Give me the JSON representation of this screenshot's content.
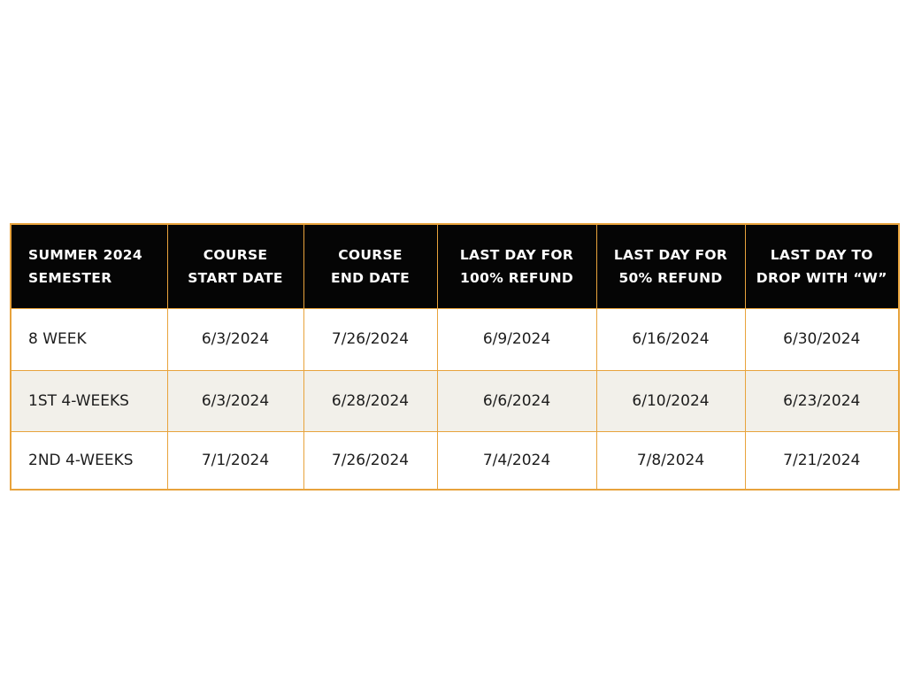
{
  "theme": {
    "border_color": "#E8A33C",
    "header_bg": "#050505",
    "header_text_color": "#FFFFFF",
    "row_alt_bg": "#F2F0EA",
    "body_text_color": "#1C1C1C",
    "page_bg": "#FFFFFF"
  },
  "table": {
    "columns": [
      {
        "line1": "SUMMER 2024",
        "line2": "SEMESTER"
      },
      {
        "line1": "COURSE",
        "line2": "START DATE"
      },
      {
        "line1": "COURSE",
        "line2": "END DATE"
      },
      {
        "line1": "LAST DAY FOR",
        "line2": "100% REFUND"
      },
      {
        "line1": "LAST DAY FOR",
        "line2": "50% REFUND"
      },
      {
        "line1": "LAST DAY TO",
        "line2": "DROP WITH “W”"
      }
    ],
    "rows": [
      {
        "semester": "8 WEEK",
        "start": "6/3/2024",
        "end": "7/26/2024",
        "refund100": "6/9/2024",
        "refund50": "6/16/2024",
        "drop_w": "6/30/2024"
      },
      {
        "semester": "1ST 4-WEEKS",
        "start": "6/3/2024",
        "end": "6/28/2024",
        "refund100": "6/6/2024",
        "refund50": "6/10/2024",
        "drop_w": "6/23/2024"
      },
      {
        "semester": "2ND 4-WEEKS",
        "start": "7/1/2024",
        "end": "7/26/2024",
        "refund100": "7/4/2024",
        "refund50": "7/8/2024",
        "drop_w": "7/21/2024"
      }
    ]
  }
}
